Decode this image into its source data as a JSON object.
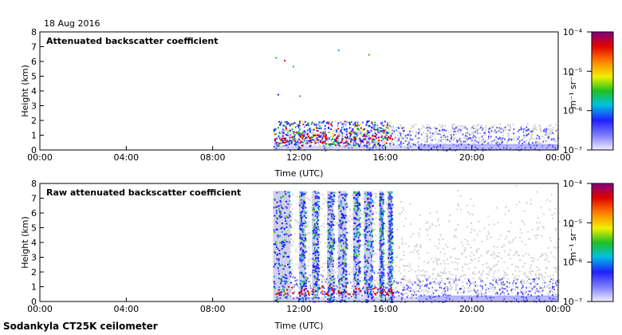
{
  "date_label": "18 Aug 2016",
  "footer": "Sodankyla CT25K ceilometer",
  "chart_data": [
    {
      "type": "heatmap",
      "title": "Attenuated backscatter coefficient",
      "xlabel": "Time (UTC)",
      "ylabel": "Height (km)",
      "xticks": [
        "00:00",
        "04:00",
        "08:00",
        "12:00",
        "16:00",
        "20:00",
        "00:00"
      ],
      "xlim_hours": [
        0,
        24
      ],
      "ylim": [
        0,
        8
      ],
      "yticks": [
        "0",
        "1",
        "2",
        "3",
        "4",
        "5",
        "6",
        "7",
        "8"
      ],
      "colorbar": {
        "scale": "log",
        "range": [
          1e-07,
          0.0001
        ],
        "label": "m⁻¹ sr⁻¹",
        "ticks": [
          "10⁻⁷",
          "10⁻⁶",
          "10⁻⁵",
          "10⁻⁴"
        ]
      },
      "data_start_hour": 10.8,
      "cloud_top_km_approx": 2.0,
      "noise_top_km_approx": 0.6
    },
    {
      "type": "heatmap",
      "title": "Raw attenuated backscatter coefficient",
      "xlabel": "Time (UTC)",
      "ylabel": "Height (km)",
      "xticks": [
        "00:00",
        "04:00",
        "08:00",
        "12:00",
        "16:00",
        "20:00",
        "00:00"
      ],
      "xlim_hours": [
        0,
        24
      ],
      "ylim": [
        0,
        8
      ],
      "yticks": [
        "0",
        "1",
        "2",
        "3",
        "4",
        "5",
        "6",
        "7",
        "8"
      ],
      "colorbar": {
        "scale": "log",
        "range": [
          1e-07,
          0.0001
        ],
        "label": "m⁻¹ sr⁻¹",
        "ticks": [
          "10⁻⁷",
          "10⁻⁶",
          "10⁻⁵",
          "10⁻⁴"
        ]
      },
      "data_start_hour": 10.8,
      "dense_column_end_hour": 16.3,
      "column_top_km": 7.5
    }
  ]
}
